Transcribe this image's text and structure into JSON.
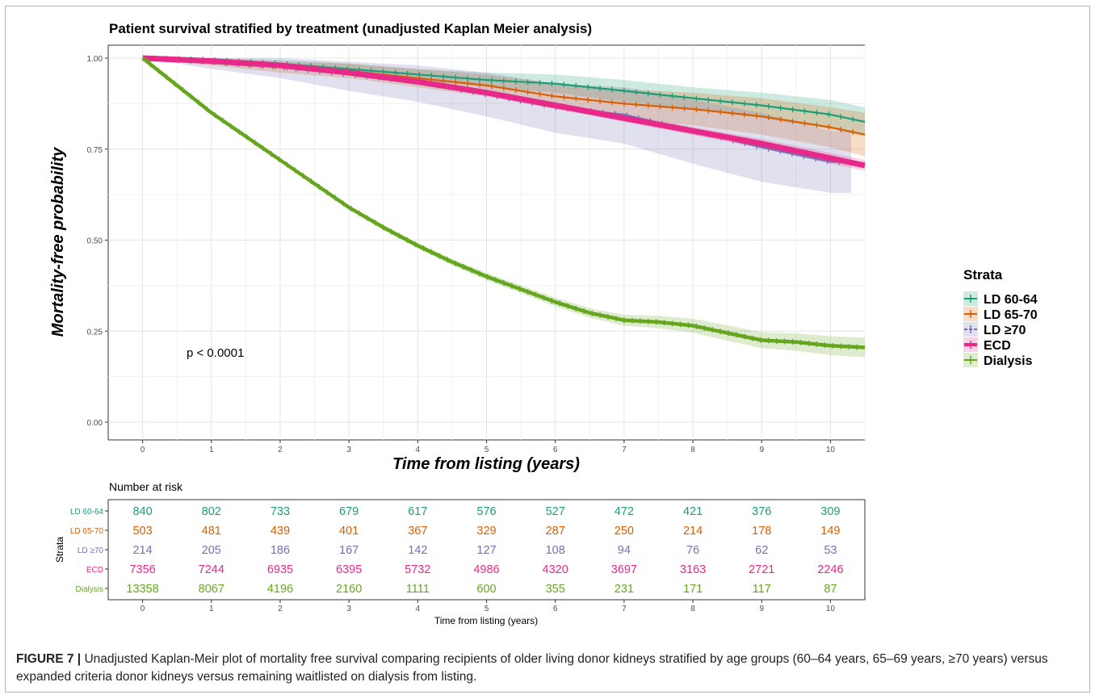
{
  "chart_data": {
    "type": "line",
    "title": "Patient survival stratified by treatment (unadjusted Kaplan Meier analysis)",
    "xlabel": "Time from listing (years)",
    "ylabel": "Mortality-free probability",
    "xlim": [
      -0.5,
      10.5
    ],
    "ylim": [
      0,
      1
    ],
    "x_ticks": [
      "0",
      "1",
      "2",
      "3",
      "4",
      "5",
      "6",
      "7",
      "8",
      "9",
      "10"
    ],
    "y_ticks": [
      "0.00",
      "0.25",
      "0.50",
      "0.75",
      "1.00"
    ],
    "grid": true,
    "annotation": "p < 0.0001",
    "legend": {
      "title": "Strata",
      "position": "right",
      "entries": [
        "LD 60-64",
        "LD 65-70",
        "LD ≥70",
        "ECD",
        "Dialysis"
      ]
    },
    "series": [
      {
        "name": "LD 60-64",
        "color": "#1b9e77",
        "x": [
          0,
          0.5,
          1,
          2,
          3,
          4,
          5,
          6,
          7,
          8,
          9,
          10,
          10.5
        ],
        "y": [
          1,
          0.998,
          0.995,
          0.985,
          0.97,
          0.955,
          0.94,
          0.93,
          0.91,
          0.89,
          0.87,
          0.845,
          0.825
        ],
        "ci_lower": [
          1,
          0.996,
          0.99,
          0.975,
          0.955,
          0.94,
          0.92,
          0.905,
          0.88,
          0.86,
          0.835,
          0.805,
          0.785
        ],
        "ci_upper": [
          1,
          1,
          1,
          0.995,
          0.985,
          0.97,
          0.96,
          0.955,
          0.94,
          0.92,
          0.905,
          0.885,
          0.865
        ]
      },
      {
        "name": "LD 65-70",
        "color": "#d95f02",
        "x": [
          0,
          0.5,
          1,
          2,
          3,
          4,
          5,
          6,
          7,
          8,
          9,
          10,
          10.5
        ],
        "y": [
          1,
          0.995,
          0.99,
          0.975,
          0.965,
          0.945,
          0.925,
          0.895,
          0.875,
          0.86,
          0.84,
          0.81,
          0.79
        ],
        "ci_lower": [
          1,
          0.99,
          0.98,
          0.96,
          0.945,
          0.92,
          0.895,
          0.86,
          0.835,
          0.815,
          0.79,
          0.755,
          0.73
        ],
        "ci_upper": [
          1,
          1,
          1,
          0.99,
          0.985,
          0.97,
          0.955,
          0.93,
          0.915,
          0.905,
          0.89,
          0.865,
          0.85
        ]
      },
      {
        "name": "LD ≥70",
        "color": "#7570b3",
        "x": [
          0,
          0.5,
          1,
          2,
          3,
          4,
          5,
          6,
          7,
          8,
          9,
          10,
          10.3
        ],
        "y": [
          1,
          0.995,
          0.99,
          0.975,
          0.955,
          0.935,
          0.9,
          0.865,
          0.845,
          0.8,
          0.755,
          0.715,
          0.715
        ],
        "ci_lower": [
          1,
          0.985,
          0.97,
          0.945,
          0.91,
          0.88,
          0.84,
          0.795,
          0.765,
          0.71,
          0.66,
          0.63,
          0.63
        ],
        "ci_upper": [
          1,
          1,
          1,
          1,
          0.99,
          0.98,
          0.96,
          0.93,
          0.92,
          0.885,
          0.85,
          0.8,
          0.8
        ]
      },
      {
        "name": "ECD",
        "color": "#e7298a",
        "x": [
          0,
          1,
          2,
          3,
          4,
          5,
          6,
          7,
          8,
          9,
          10,
          10.5
        ],
        "y": [
          1,
          0.992,
          0.98,
          0.96,
          0.935,
          0.905,
          0.87,
          0.835,
          0.8,
          0.765,
          0.725,
          0.705
        ],
        "ci_lower": [
          1,
          0.99,
          0.975,
          0.955,
          0.928,
          0.897,
          0.861,
          0.825,
          0.789,
          0.752,
          0.71,
          0.69
        ],
        "ci_upper": [
          1,
          0.994,
          0.985,
          0.965,
          0.942,
          0.913,
          0.879,
          0.845,
          0.811,
          0.778,
          0.74,
          0.72
        ]
      },
      {
        "name": "Dialysis",
        "color": "#66a61e",
        "x": [
          0,
          0.5,
          1,
          1.5,
          2,
          2.5,
          3,
          3.5,
          4,
          4.5,
          5,
          5.5,
          6,
          6.5,
          7,
          7.5,
          8,
          8.5,
          9,
          9.5,
          10,
          10.5
        ],
        "y": [
          1,
          0.925,
          0.85,
          0.785,
          0.72,
          0.655,
          0.59,
          0.535,
          0.485,
          0.44,
          0.4,
          0.365,
          0.33,
          0.3,
          0.28,
          0.275,
          0.265,
          0.245,
          0.225,
          0.22,
          0.21,
          0.205
        ],
        "ci_lower": [
          1,
          0.92,
          0.845,
          0.78,
          0.715,
          0.65,
          0.584,
          0.528,
          0.477,
          0.431,
          0.39,
          0.354,
          0.318,
          0.287,
          0.265,
          0.258,
          0.246,
          0.224,
          0.203,
          0.196,
          0.184,
          0.178
        ],
        "ci_upper": [
          1,
          0.93,
          0.855,
          0.79,
          0.725,
          0.66,
          0.596,
          0.542,
          0.493,
          0.449,
          0.41,
          0.376,
          0.342,
          0.313,
          0.295,
          0.292,
          0.284,
          0.266,
          0.247,
          0.244,
          0.236,
          0.232
        ]
      }
    ]
  },
  "risk_table": {
    "title": "Number at risk",
    "ylabel": "Strata",
    "xlabel": "Time from listing (years)",
    "x_ticks": [
      "0",
      "1",
      "2",
      "3",
      "4",
      "5",
      "6",
      "7",
      "8",
      "9",
      "10"
    ],
    "rows": [
      {
        "label": "LD 60-64",
        "color": "#1b9e77",
        "values": [
          "840",
          "802",
          "733",
          "679",
          "617",
          "576",
          "527",
          "472",
          "421",
          "376",
          "309"
        ]
      },
      {
        "label": "LD 65-70",
        "color": "#d95f02",
        "values": [
          "503",
          "481",
          "439",
          "401",
          "367",
          "329",
          "287",
          "250",
          "214",
          "178",
          "149"
        ]
      },
      {
        "label": "LD ≥70",
        "color": "#7570b3",
        "values": [
          "214",
          "205",
          "186",
          "167",
          "142",
          "127",
          "108",
          "94",
          "76",
          "62",
          "53"
        ]
      },
      {
        "label": "ECD",
        "color": "#e7298a",
        "values": [
          "7356",
          "7244",
          "6935",
          "6395",
          "5732",
          "4986",
          "4320",
          "3697",
          "3163",
          "2721",
          "2246"
        ]
      },
      {
        "label": "Dialysis",
        "color": "#66a61e",
        "values": [
          "13358",
          "8067",
          "4196",
          "2160",
          "1111",
          "600",
          "355",
          "231",
          "171",
          "117",
          "87"
        ]
      }
    ]
  },
  "caption": {
    "label": "FIGURE 7 |",
    "text": "Unadjusted Kaplan-Meir plot of mortality free survival comparing recipients of older living donor kidneys stratified by age groups (60–64 years, 65–69 years, ≥70 years) versus expanded criteria donor kidneys versus remaining waitlisted on dialysis from listing."
  }
}
